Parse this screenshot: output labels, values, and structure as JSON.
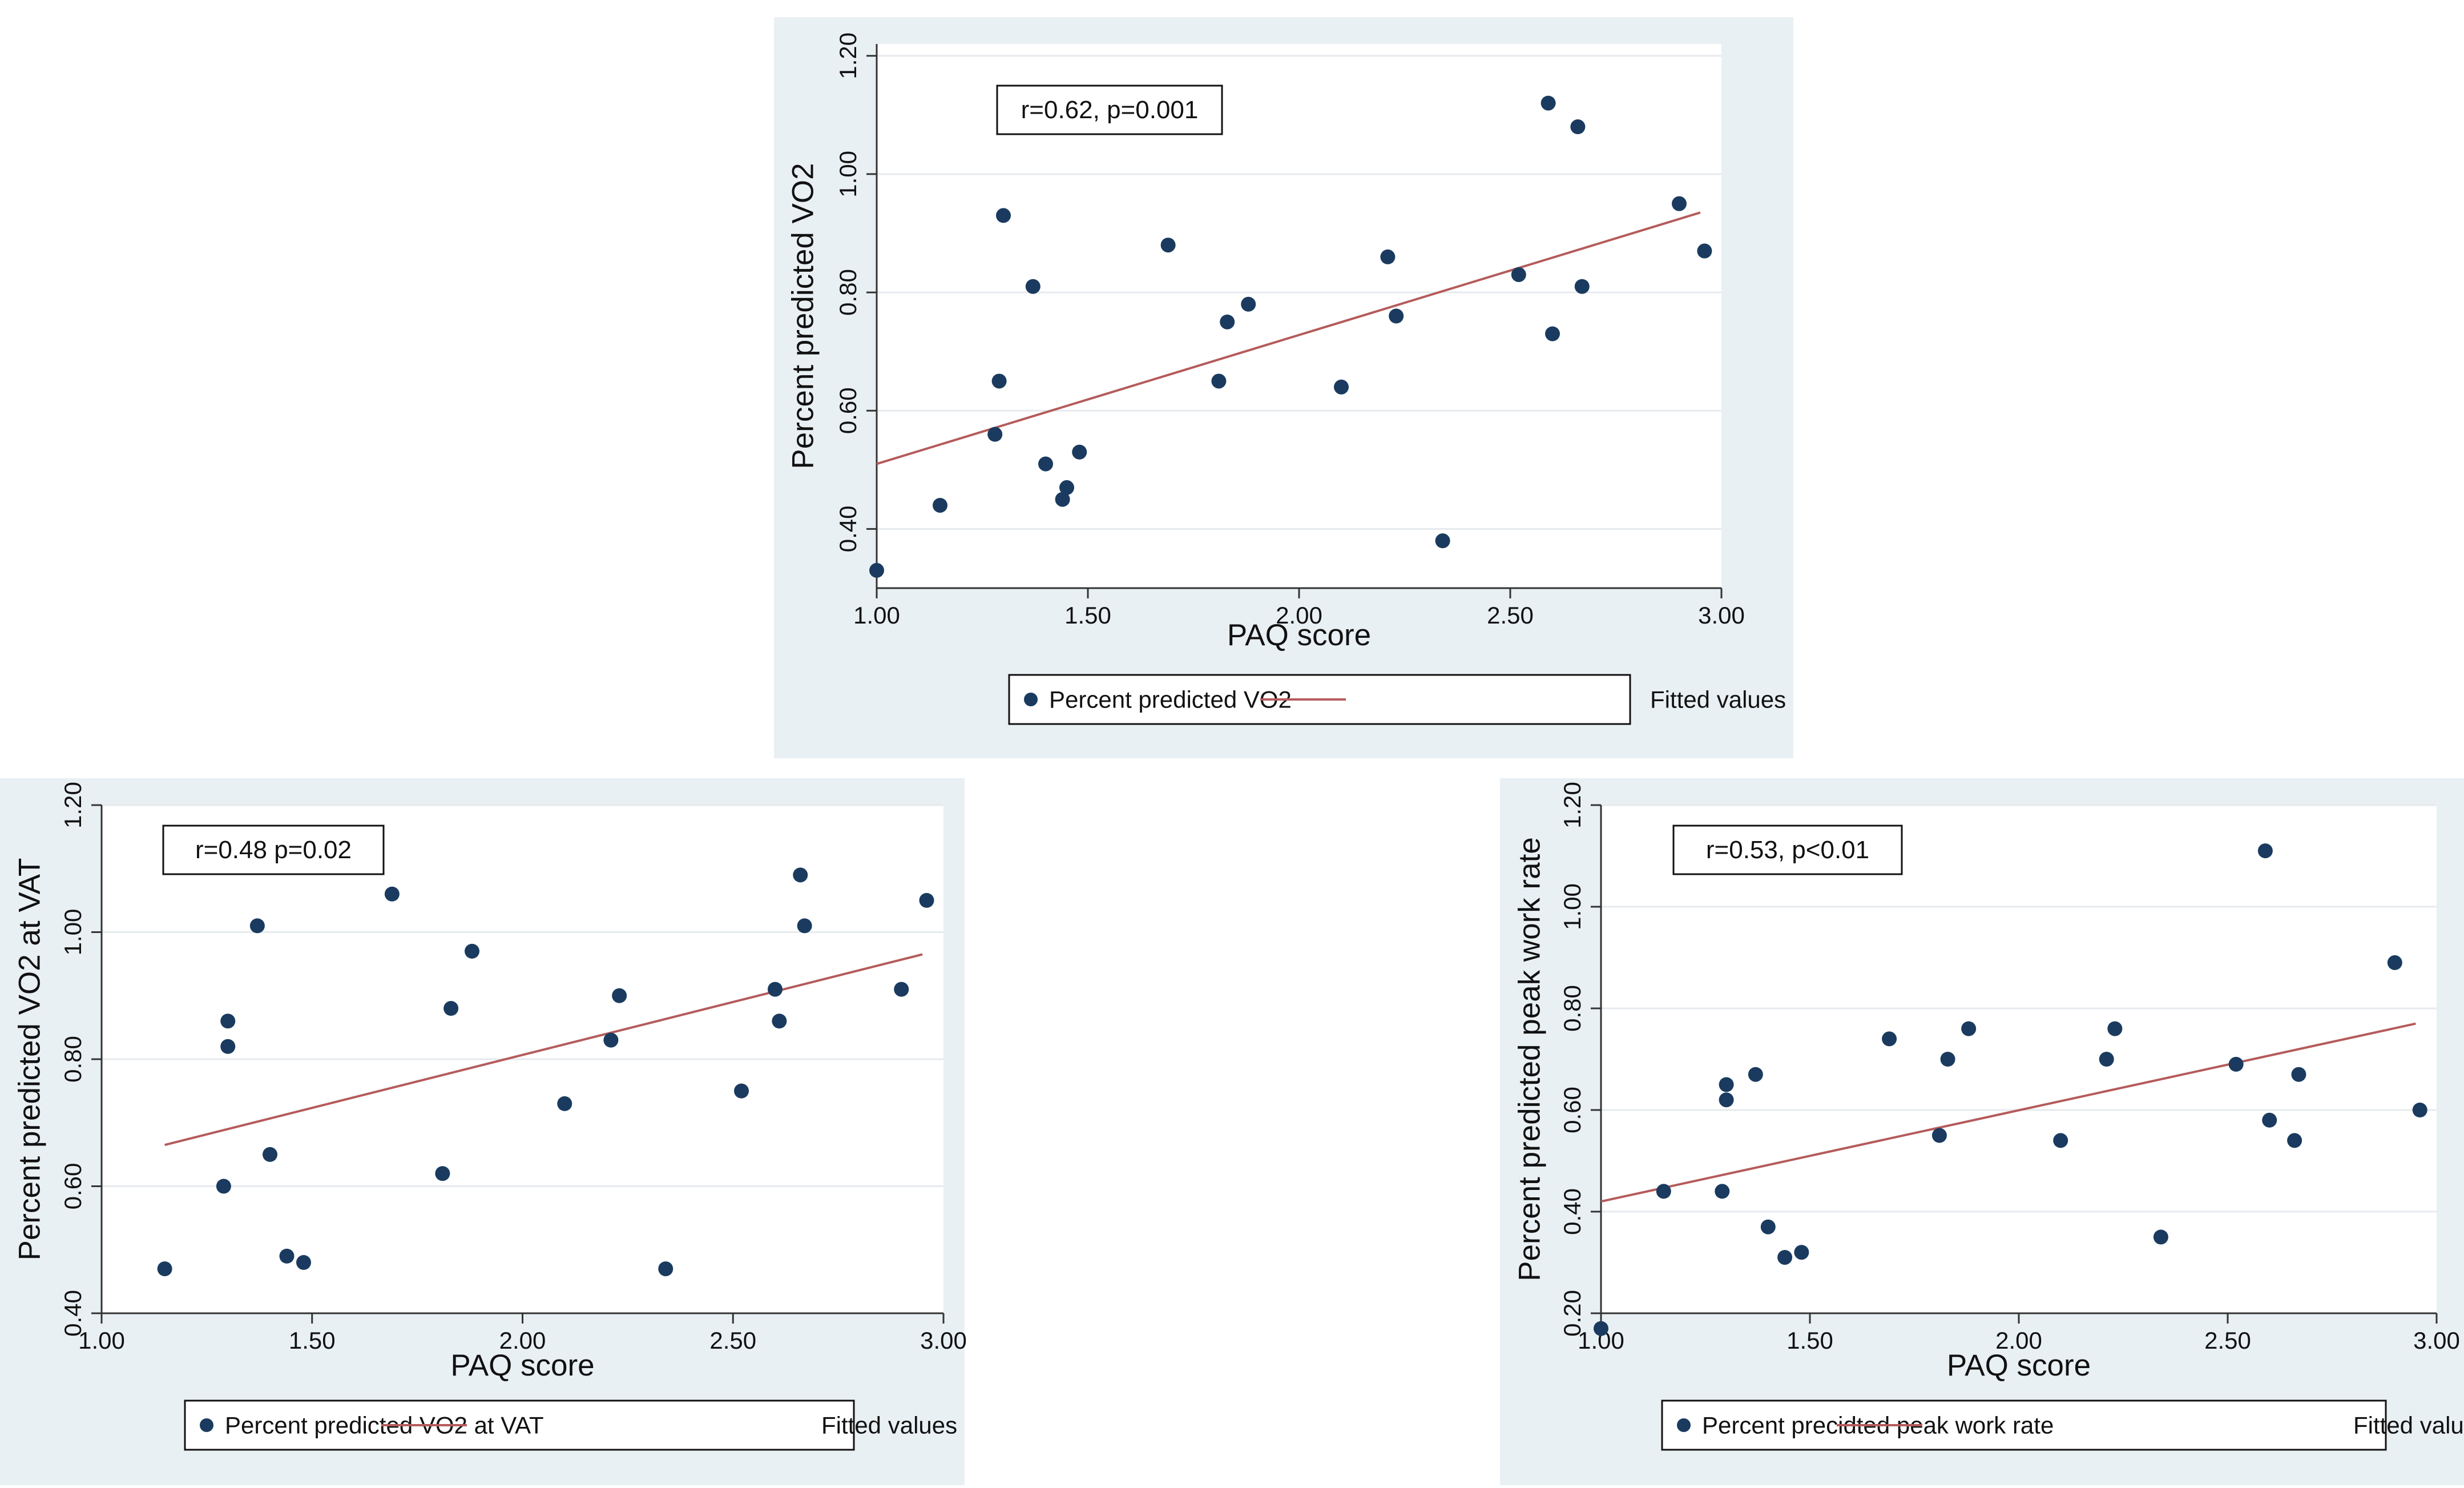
{
  "chart_data": [
    {
      "type": "scatter",
      "xlabel": "PAQ score",
      "ylabel": "Percent predicted VO2",
      "annotation": "r=0.62, p=0.001",
      "xlim": [
        1.0,
        3.0
      ],
      "ylim": [
        0.3,
        1.22
      ],
      "xticks": [
        "1.00",
        "1.50",
        "2.00",
        "2.50",
        "3.00"
      ],
      "yticks": [
        "0.40",
        "0.60",
        "0.80",
        "1.00",
        "1.20"
      ],
      "grid": true,
      "legend": [
        "Percent predicted VO2",
        "Fitted values"
      ],
      "colors": {
        "point": "#1a3b5f",
        "fit": "#b55b5b"
      },
      "points": [
        {
          "x": 1.0,
          "y": 0.33
        },
        {
          "x": 1.15,
          "y": 0.44
        },
        {
          "x": 1.28,
          "y": 0.56
        },
        {
          "x": 1.29,
          "y": 0.65
        },
        {
          "x": 1.3,
          "y": 0.93
        },
        {
          "x": 1.37,
          "y": 0.81
        },
        {
          "x": 1.4,
          "y": 0.51
        },
        {
          "x": 1.44,
          "y": 0.45
        },
        {
          "x": 1.45,
          "y": 0.47
        },
        {
          "x": 1.48,
          "y": 0.53
        },
        {
          "x": 1.69,
          "y": 0.88
        },
        {
          "x": 1.81,
          "y": 0.65
        },
        {
          "x": 1.83,
          "y": 0.75
        },
        {
          "x": 1.88,
          "y": 0.78
        },
        {
          "x": 2.1,
          "y": 0.64
        },
        {
          "x": 2.21,
          "y": 0.86
        },
        {
          "x": 2.23,
          "y": 0.76
        },
        {
          "x": 2.34,
          "y": 0.38
        },
        {
          "x": 2.52,
          "y": 0.83
        },
        {
          "x": 2.59,
          "y": 1.12
        },
        {
          "x": 2.6,
          "y": 0.73
        },
        {
          "x": 2.66,
          "y": 1.08
        },
        {
          "x": 2.67,
          "y": 0.81
        },
        {
          "x": 2.9,
          "y": 0.95
        },
        {
          "x": 2.96,
          "y": 0.87
        }
      ],
      "fit": {
        "x": [
          1.0,
          2.95
        ],
        "y": [
          0.51,
          0.935
        ]
      }
    },
    {
      "type": "scatter",
      "xlabel": "PAQ score",
      "ylabel": "Percent predicted VO2 at VAT",
      "annotation": "r=0.48 p=0.02",
      "xlim": [
        1.0,
        3.0
      ],
      "ylim": [
        0.4,
        1.2
      ],
      "xticks": [
        "1.00",
        "1.50",
        "2.00",
        "2.50",
        "3.00"
      ],
      "yticks": [
        "0.40",
        "0.60",
        "0.80",
        "1.00",
        "1.20"
      ],
      "grid": true,
      "legend": [
        "Percent predicted VO2 at VAT",
        "Fitted values"
      ],
      "colors": {
        "point": "#1a3b5f",
        "fit": "#b55b5b"
      },
      "points": [
        {
          "x": 1.15,
          "y": 0.47
        },
        {
          "x": 1.29,
          "y": 0.6
        },
        {
          "x": 1.3,
          "y": 0.86
        },
        {
          "x": 1.3,
          "y": 0.82
        },
        {
          "x": 1.37,
          "y": 1.01
        },
        {
          "x": 1.4,
          "y": 0.65
        },
        {
          "x": 1.44,
          "y": 0.49
        },
        {
          "x": 1.48,
          "y": 0.48
        },
        {
          "x": 1.69,
          "y": 1.06
        },
        {
          "x": 1.81,
          "y": 0.62
        },
        {
          "x": 1.83,
          "y": 0.88
        },
        {
          "x": 1.88,
          "y": 0.97
        },
        {
          "x": 2.1,
          "y": 0.73
        },
        {
          "x": 2.21,
          "y": 0.83
        },
        {
          "x": 2.23,
          "y": 0.9
        },
        {
          "x": 2.34,
          "y": 0.47
        },
        {
          "x": 2.52,
          "y": 0.75
        },
        {
          "x": 2.6,
          "y": 0.91
        },
        {
          "x": 2.61,
          "y": 0.86
        },
        {
          "x": 2.66,
          "y": 1.09
        },
        {
          "x": 2.67,
          "y": 1.01
        },
        {
          "x": 2.9,
          "y": 0.91
        },
        {
          "x": 2.96,
          "y": 1.05
        }
      ],
      "fit": {
        "x": [
          1.15,
          2.95
        ],
        "y": [
          0.665,
          0.965
        ]
      }
    },
    {
      "type": "scatter",
      "xlabel": "PAQ score",
      "ylabel": "Percent predicted peak work rate",
      "annotation": "r=0.53, p<0.01",
      "xlim": [
        1.0,
        3.0
      ],
      "ylim": [
        0.2,
        1.2
      ],
      "xticks": [
        "1.00",
        "1.50",
        "2.00",
        "2.50",
        "3.00"
      ],
      "yticks": [
        "0.20",
        "0.40",
        "0.60",
        "0.80",
        "1.00",
        "1.20"
      ],
      "grid": true,
      "legend": [
        "Percent precidted peak work rate",
        "Fitted values"
      ],
      "colors": {
        "point": "#1a3b5f",
        "fit": "#b55b5b"
      },
      "points": [
        {
          "x": 1.0,
          "y": 0.17
        },
        {
          "x": 1.15,
          "y": 0.44
        },
        {
          "x": 1.29,
          "y": 0.44
        },
        {
          "x": 1.3,
          "y": 0.65
        },
        {
          "x": 1.3,
          "y": 0.62
        },
        {
          "x": 1.37,
          "y": 0.67
        },
        {
          "x": 1.4,
          "y": 0.37
        },
        {
          "x": 1.44,
          "y": 0.31
        },
        {
          "x": 1.48,
          "y": 0.32
        },
        {
          "x": 1.69,
          "y": 0.74
        },
        {
          "x": 1.81,
          "y": 0.55
        },
        {
          "x": 1.83,
          "y": 0.7
        },
        {
          "x": 1.88,
          "y": 0.76
        },
        {
          "x": 2.1,
          "y": 0.54
        },
        {
          "x": 2.21,
          "y": 0.7
        },
        {
          "x": 2.23,
          "y": 0.76
        },
        {
          "x": 2.34,
          "y": 0.35
        },
        {
          "x": 2.52,
          "y": 0.69
        },
        {
          "x": 2.59,
          "y": 1.11
        },
        {
          "x": 2.6,
          "y": 0.58
        },
        {
          "x": 2.66,
          "y": 0.54
        },
        {
          "x": 2.67,
          "y": 0.67
        },
        {
          "x": 2.9,
          "y": 0.89
        },
        {
          "x": 2.96,
          "y": 0.6
        }
      ],
      "fit": {
        "x": [
          1.0,
          2.95
        ],
        "y": [
          0.42,
          0.77
        ]
      }
    }
  ]
}
